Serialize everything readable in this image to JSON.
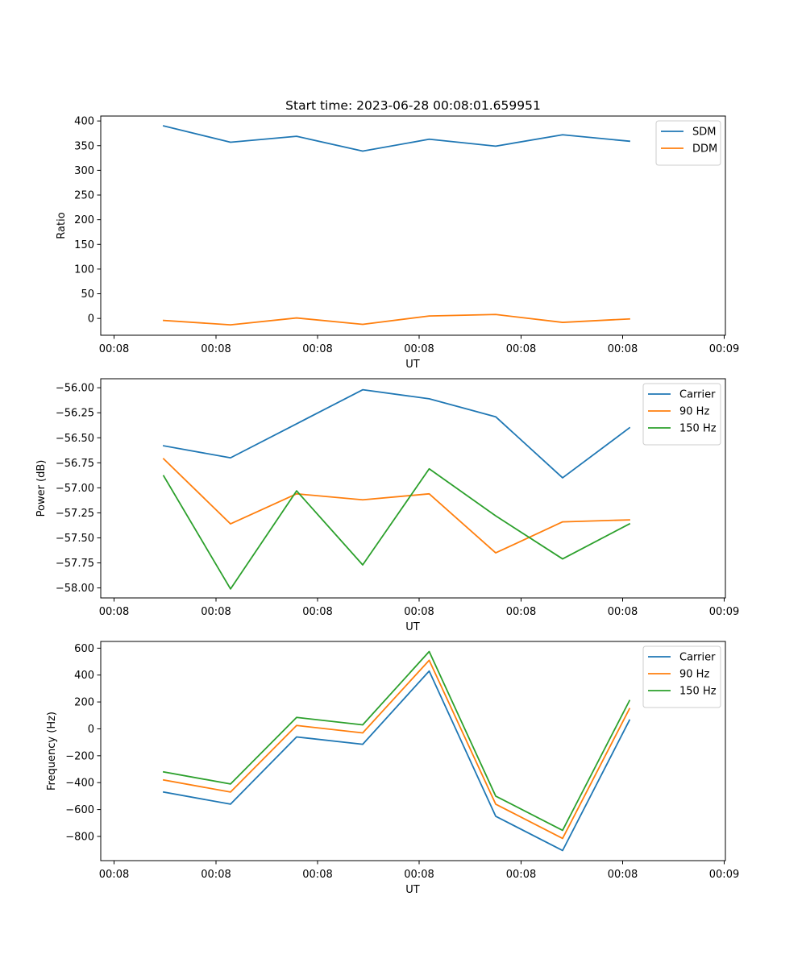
{
  "figure": {
    "title": "Start time: 2023-06-28 00:08:01.659951"
  },
  "chart_data": [
    {
      "type": "line",
      "title": "Start time: 2023-06-28 00:08:01.659951",
      "xlabel": "UT",
      "ylabel": "Ratio",
      "x_tick_labels": [
        "00:08",
        "00:08",
        "00:08",
        "00:08",
        "00:08",
        "00:08",
        "00:08",
        "00:09"
      ],
      "y_ticks": [
        0,
        50,
        100,
        150,
        200,
        250,
        300,
        350,
        400
      ],
      "y_tick_labels": [
        "0",
        "50",
        "100",
        "150",
        "200",
        "250",
        "300",
        "350",
        "400"
      ],
      "ylim": [
        -34,
        410
      ],
      "grid": false,
      "legend": "upper right",
      "series": [
        {
          "name": "SDM",
          "color": "#1f77b4",
          "values": [
            390,
            357,
            369,
            339,
            363,
            349,
            372,
            359
          ]
        },
        {
          "name": "DDM",
          "color": "#ff7f0e",
          "values": [
            -4,
            -13,
            1,
            -12,
            5,
            8,
            -8,
            -1
          ]
        }
      ]
    },
    {
      "type": "line",
      "xlabel": "UT",
      "ylabel": "Power (dB)",
      "x_tick_labels": [
        "00:08",
        "00:08",
        "00:08",
        "00:08",
        "00:08",
        "00:08",
        "00:08",
        "00:09"
      ],
      "y_ticks": [
        -58.0,
        -57.75,
        -57.5,
        -57.25,
        -57.0,
        -56.75,
        -56.5,
        -56.25,
        -56.0
      ],
      "y_tick_labels": [
        "−58.00",
        "−57.75",
        "−57.50",
        "−57.25",
        "−57.00",
        "−56.75",
        "−56.50",
        "−56.25",
        "−56.00"
      ],
      "ylim": [
        -58.1,
        -55.91
      ],
      "grid": false,
      "legend": "upper right",
      "series": [
        {
          "name": "Carrier",
          "color": "#1f77b4",
          "values": [
            -56.58,
            -56.7,
            -56.36,
            -56.02,
            -56.11,
            -56.29,
            -56.9,
            -56.4
          ]
        },
        {
          "name": "90 Hz",
          "color": "#ff7f0e",
          "values": [
            -56.71,
            -57.36,
            -57.06,
            -57.12,
            -57.06,
            -57.65,
            -57.34,
            -57.32
          ]
        },
        {
          "name": "150 Hz",
          "color": "#2ca02c",
          "values": [
            -56.88,
            -58.01,
            -57.03,
            -57.77,
            -56.81,
            -57.28,
            -57.71,
            -57.36
          ]
        }
      ]
    },
    {
      "type": "line",
      "xlabel": "UT",
      "ylabel": "Frequency (Hz)",
      "x_tick_labels": [
        "00:08",
        "00:08",
        "00:08",
        "00:08",
        "00:08",
        "00:08",
        "00:08",
        "00:09"
      ],
      "y_ticks": [
        -800,
        -600,
        -400,
        -200,
        0,
        200,
        400,
        600
      ],
      "y_tick_labels": [
        "−800",
        "−600",
        "−400",
        "−200",
        "0",
        "200",
        "400",
        "600"
      ],
      "ylim": [
        -980,
        650
      ],
      "grid": false,
      "legend": "upper right",
      "series": [
        {
          "name": "Carrier",
          "color": "#1f77b4",
          "values": [
            -470,
            -560,
            -60,
            -115,
            430,
            -650,
            -905,
            65
          ]
        },
        {
          "name": "90 Hz",
          "color": "#ff7f0e",
          "values": [
            -380,
            -470,
            25,
            -30,
            510,
            -560,
            -815,
            150
          ]
        },
        {
          "name": "150 Hz",
          "color": "#2ca02c",
          "values": [
            -320,
            -410,
            85,
            30,
            575,
            -500,
            -755,
            210
          ]
        }
      ]
    }
  ]
}
